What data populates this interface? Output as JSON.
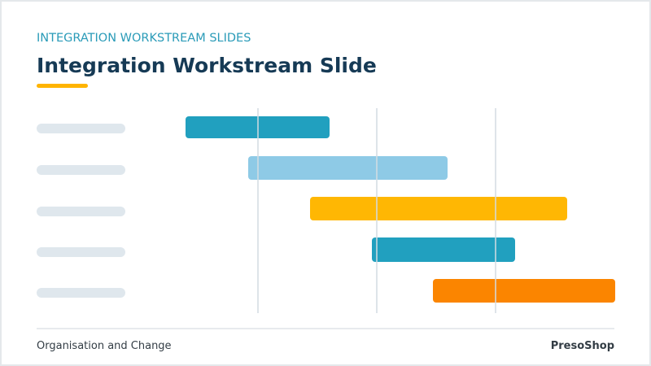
{
  "header": {
    "eyebrow": "INTEGRATION WORKSTREAM SLIDES",
    "title": "Integration Workstream Slide"
  },
  "footer": {
    "left": "Organisation and Change",
    "right": "PresoShop"
  }
}
